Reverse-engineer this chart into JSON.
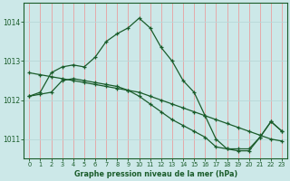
{
  "title": "Graphe pression niveau de la mer (hPa)",
  "background_color": "#cce8e8",
  "line_color": "#1a5c2a",
  "marker_color": "#1a5c2a",
  "xlim": [
    -0.5,
    23.5
  ],
  "ylim": [
    1010.5,
    1014.5
  ],
  "yticks": [
    1011,
    1012,
    1013,
    1014
  ],
  "xticks": [
    0,
    1,
    2,
    3,
    4,
    5,
    6,
    7,
    8,
    9,
    10,
    11,
    12,
    13,
    14,
    15,
    16,
    17,
    18,
    19,
    20,
    21,
    22,
    23
  ],
  "vgrid_color": "#e8a0a0",
  "hgrid_color": "#b8d8d8",
  "series": [
    {
      "x": [
        0,
        1,
        2,
        3,
        4,
        5,
        6,
        7,
        8,
        9,
        10,
        11,
        12,
        13,
        14,
        15,
        16,
        17,
        18,
        19,
        20,
        21,
        22,
        23
      ],
      "y": [
        1012.1,
        1012.2,
        1012.7,
        1012.85,
        1012.9,
        1012.85,
        1013.1,
        1013.5,
        1013.7,
        1013.85,
        1014.1,
        1013.85,
        1013.35,
        1013.0,
        1012.5,
        1012.2,
        1011.6,
        1011.0,
        1010.75,
        1010.75,
        1010.75,
        1011.05,
        1011.45,
        1011.2
      ]
    },
    {
      "x": [
        0,
        1,
        2,
        3,
        4,
        5,
        6,
        7,
        8,
        9,
        10,
        11,
        12,
        13,
        14,
        15,
        16,
        17,
        18,
        19,
        20,
        21,
        22,
        23
      ],
      "y": [
        1012.7,
        1012.65,
        1012.6,
        1012.55,
        1012.5,
        1012.45,
        1012.4,
        1012.35,
        1012.3,
        1012.25,
        1012.2,
        1012.1,
        1012.0,
        1011.9,
        1011.8,
        1011.7,
        1011.6,
        1011.5,
        1011.4,
        1011.3,
        1011.2,
        1011.1,
        1011.0,
        1010.95
      ]
    },
    {
      "x": [
        0,
        1,
        2,
        3,
        4,
        5,
        6,
        7,
        8,
        9,
        10,
        11,
        12,
        13,
        14,
        15,
        16,
        17,
        18,
        19,
        20,
        21,
        22,
        23
      ],
      "y": [
        1012.1,
        1012.15,
        1012.2,
        1012.5,
        1012.55,
        1012.5,
        1012.45,
        1012.4,
        1012.35,
        1012.25,
        1012.1,
        1011.9,
        1011.7,
        1011.5,
        1011.35,
        1011.2,
        1011.05,
        1010.8,
        1010.75,
        1010.7,
        1010.7,
        1011.05,
        1011.45,
        1011.2
      ]
    }
  ]
}
